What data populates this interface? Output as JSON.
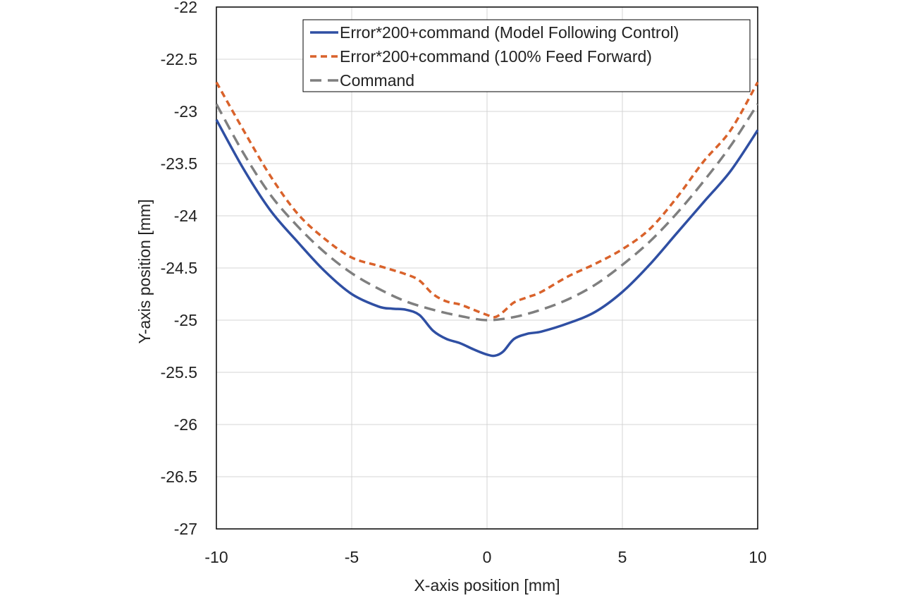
{
  "chart_data": {
    "type": "line",
    "xlabel": "X-axis position [mm]",
    "ylabel": "Y-axis  position [mm]",
    "xlim": [
      -10,
      10
    ],
    "ylim": [
      -27,
      -22
    ],
    "xticks": [
      -10,
      -5,
      0,
      5,
      10
    ],
    "yticks": [
      -22,
      -22.5,
      -23,
      -23.5,
      -24,
      -24.5,
      -25,
      -25.5,
      -26,
      -26.5,
      -27
    ],
    "xtick_labels": [
      "-10",
      "-5",
      "0",
      "5",
      "10"
    ],
    "ytick_labels": [
      "-22",
      "-22.5",
      "-23",
      "-23.5",
      "-24",
      "-24.5",
      "-25",
      "-25.5",
      "-26",
      "-26.5",
      "-27"
    ],
    "grid": true,
    "legend_position": "top-right",
    "series": [
      {
        "name": "Error*200+command (Model Following Control)",
        "color": "#2f4fa3",
        "dash": "solid",
        "x": [
          -10,
          -9,
          -8,
          -7,
          -6,
          -5,
          -4,
          -3.5,
          -3,
          -2.5,
          -2,
          -1.5,
          -1,
          -0.5,
          0,
          0.3,
          0.6,
          1,
          1.5,
          2,
          3,
          4,
          5,
          6,
          7,
          8,
          9,
          10
        ],
        "y": [
          -23.08,
          -23.55,
          -23.95,
          -24.25,
          -24.53,
          -24.75,
          -24.87,
          -24.89,
          -24.9,
          -24.95,
          -25.1,
          -25.18,
          -25.22,
          -25.28,
          -25.33,
          -25.34,
          -25.3,
          -25.18,
          -25.13,
          -25.11,
          -25.03,
          -24.92,
          -24.73,
          -24.47,
          -24.17,
          -23.87,
          -23.57,
          -23.18
        ]
      },
      {
        "name": "Error*200+command  (100% Feed Forward)",
        "color": "#d9622b",
        "dash": "short",
        "x": [
          -10,
          -9,
          -8,
          -7,
          -6,
          -5,
          -4,
          -3,
          -2.5,
          -2,
          -1.5,
          -1,
          -0.5,
          0,
          0.3,
          0.6,
          1,
          1.5,
          2,
          3,
          4,
          5,
          6,
          7,
          8,
          9,
          10
        ],
        "y": [
          -22.72,
          -23.18,
          -23.62,
          -23.98,
          -24.22,
          -24.4,
          -24.48,
          -24.56,
          -24.62,
          -24.75,
          -24.82,
          -24.85,
          -24.9,
          -24.95,
          -24.97,
          -24.92,
          -24.83,
          -24.78,
          -24.73,
          -24.58,
          -24.46,
          -24.32,
          -24.13,
          -23.83,
          -23.48,
          -23.18,
          -22.72
        ]
      },
      {
        "name": "Command",
        "color": "#7f7f7f",
        "dash": "long",
        "x": [
          -10,
          -9,
          -8,
          -7,
          -6,
          -5,
          -4,
          -3,
          -2,
          -1,
          0,
          1,
          2,
          3,
          4,
          5,
          6,
          7,
          8,
          9,
          10
        ],
        "y": [
          -22.93,
          -23.4,
          -23.8,
          -24.1,
          -24.35,
          -24.55,
          -24.7,
          -24.82,
          -24.9,
          -24.96,
          -25.0,
          -24.97,
          -24.9,
          -24.8,
          -24.66,
          -24.47,
          -24.25,
          -23.98,
          -23.67,
          -23.33,
          -22.93
        ]
      }
    ]
  }
}
